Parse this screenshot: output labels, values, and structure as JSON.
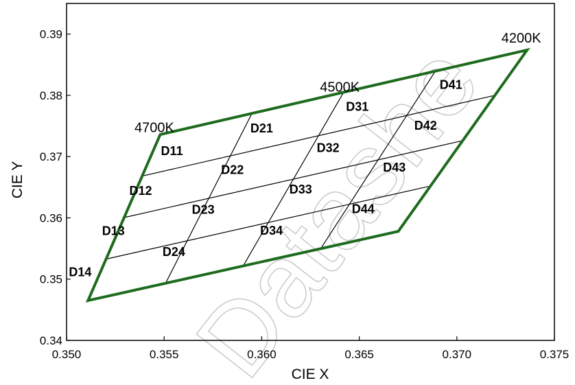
{
  "chart_data": {
    "type": "scatter",
    "xlabel": "CIE X",
    "ylabel": "CIE Y",
    "xlim": [
      0.35,
      0.375
    ],
    "ylim": [
      0.34,
      0.395
    ],
    "x_ticks": [
      "0.350",
      "0.355",
      "0.360",
      "0.365",
      "0.370",
      "0.375"
    ],
    "y_ticks": [
      "0.34",
      "0.35",
      "0.36",
      "0.37",
      "0.38",
      "0.39"
    ],
    "outline_color": "#1e6b1e",
    "corners": {
      "top_left": [
        0.3548,
        0.3736
      ],
      "top_right": [
        0.3736,
        0.3874
      ],
      "bottom_right": [
        0.367,
        0.3578
      ],
      "bottom_left": [
        0.3511,
        0.3465
      ]
    },
    "cct_labels": [
      {
        "text": "4700K",
        "x": 0.3545,
        "y": 0.374
      },
      {
        "text": "4500K",
        "x": 0.364,
        "y": 0.3806
      },
      {
        "text": "4200K",
        "x": 0.3733,
        "y": 0.3886
      }
    ],
    "grid_divisions": 4,
    "bins": [
      {
        "name": "D11",
        "x": 0.3554,
        "y": 0.3708
      },
      {
        "name": "D12",
        "x": 0.3538,
        "y": 0.3643
      },
      {
        "name": "D13",
        "x": 0.3524,
        "y": 0.3577
      },
      {
        "name": "D14",
        "x": 0.3507,
        "y": 0.351
      },
      {
        "name": "D21",
        "x": 0.36,
        "y": 0.3745
      },
      {
        "name": "D22",
        "x": 0.3585,
        "y": 0.3677
      },
      {
        "name": "D23",
        "x": 0.357,
        "y": 0.3612
      },
      {
        "name": "D24",
        "x": 0.3555,
        "y": 0.3543
      },
      {
        "name": "D31",
        "x": 0.3649,
        "y": 0.378
      },
      {
        "name": "D32",
        "x": 0.3634,
        "y": 0.3713
      },
      {
        "name": "D33",
        "x": 0.362,
        "y": 0.3645
      },
      {
        "name": "D34",
        "x": 0.3605,
        "y": 0.3578
      },
      {
        "name": "D41",
        "x": 0.3697,
        "y": 0.3816
      },
      {
        "name": "D42",
        "x": 0.3684,
        "y": 0.3749
      },
      {
        "name": "D43",
        "x": 0.3668,
        "y": 0.3681
      },
      {
        "name": "D44",
        "x": 0.3652,
        "y": 0.3613
      }
    ],
    "grid": false,
    "watermark": "Datashe"
  }
}
